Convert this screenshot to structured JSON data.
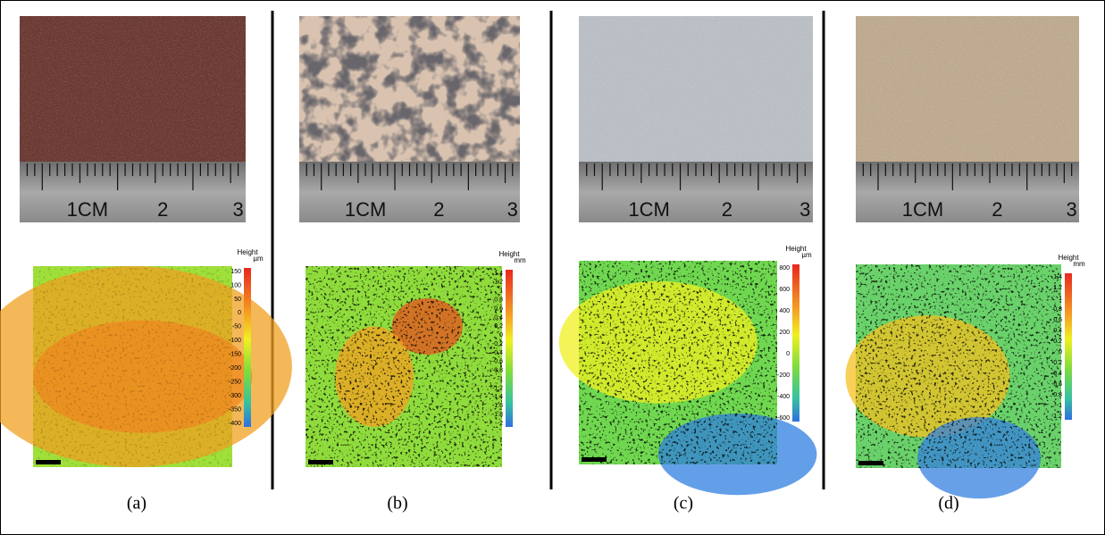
{
  "panels": [
    {
      "label": "(a)",
      "ruler": [
        "1CM",
        "2",
        "3"
      ],
      "height_title": "Height",
      "unit": "µm",
      "colorbar_ticks": [
        150,
        100,
        50,
        0,
        -50,
        -100,
        -150,
        -200,
        -250,
        -300,
        -350,
        -400
      ]
    },
    {
      "label": "(b)",
      "ruler": [
        "1CM",
        "2",
        "3"
      ],
      "height_title": "Height",
      "unit": "mm",
      "colorbar_ticks": [
        1.4,
        1.2,
        1,
        0.8,
        0.6,
        0.4,
        0.2,
        0,
        -0.2,
        -0.4,
        -0.6,
        -0.8,
        -1,
        -1.2,
        -1.4,
        -1.6,
        -1.8,
        -2
      ]
    },
    {
      "label": "(c)",
      "ruler": [
        "1CM",
        "2",
        "3"
      ],
      "height_title": "Height",
      "unit": "µm",
      "colorbar_ticks": [
        800,
        600,
        400,
        200,
        0,
        -200,
        -400,
        -600
      ]
    },
    {
      "label": "(d)",
      "ruler": [
        "1CM",
        "2",
        "3"
      ],
      "height_title": "Height",
      "unit": "mm",
      "colorbar_ticks": [
        1.4,
        1.2,
        1,
        0.8,
        0.6,
        0.4,
        0.2,
        0,
        -0.2,
        -0.4,
        -0.6,
        -0.8,
        -1,
        -1.2
      ]
    }
  ]
}
